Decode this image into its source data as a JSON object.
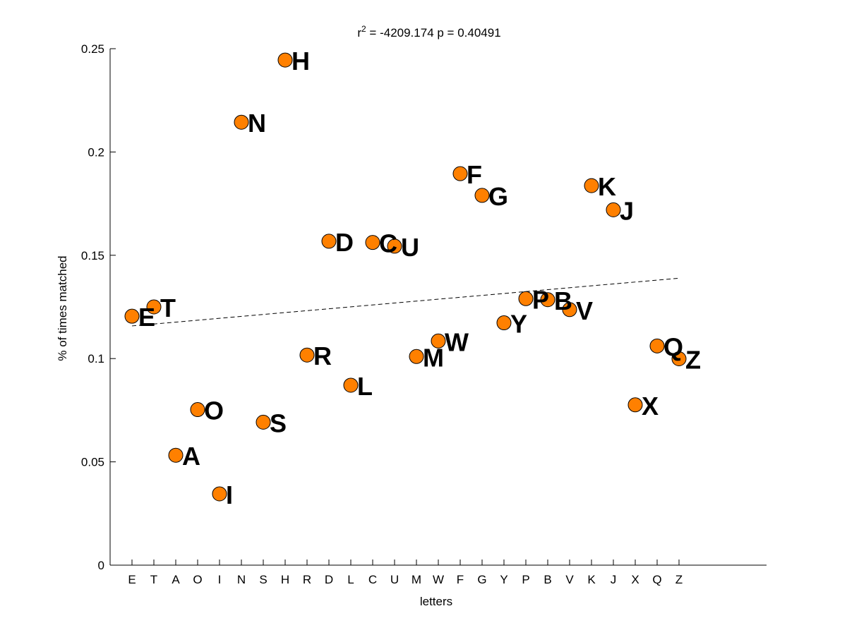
{
  "chart_data": {
    "type": "scatter",
    "title_prefix": "r",
    "title_superscript": "2",
    "title_rest": " = -4209.174 p = 0.40491",
    "xlabel": "letters",
    "ylabel": "% of times matched",
    "categories": [
      "E",
      "T",
      "A",
      "O",
      "I",
      "N",
      "S",
      "H",
      "R",
      "D",
      "L",
      "C",
      "U",
      "M",
      "W",
      "F",
      "G",
      "Y",
      "P",
      "B",
      "V",
      "K",
      "J",
      "X",
      "Q",
      "Z"
    ],
    "values": [
      0.1205,
      0.125,
      0.0532,
      0.0753,
      0.0345,
      0.2144,
      0.0692,
      0.2445,
      0.1017,
      0.1568,
      0.0871,
      0.1562,
      0.1544,
      0.101,
      0.1085,
      0.1895,
      0.179,
      0.1173,
      0.129,
      0.1285,
      0.1237,
      0.1837,
      0.172,
      0.0776,
      0.1061,
      0.0999
    ],
    "point_labels": [
      "E",
      "T",
      "A",
      "O",
      "I",
      "N",
      "S",
      "H",
      "R",
      "D",
      "L",
      "C",
      "U",
      "M",
      "W",
      "F",
      "G",
      "Y",
      "P",
      "B",
      "V",
      "K",
      "J",
      "X",
      "Q",
      "Z"
    ],
    "ylim": [
      0,
      0.25
    ],
    "yticks": [
      0,
      0.05,
      0.1,
      0.15,
      0.2,
      0.25
    ],
    "ytick_labels": [
      "0",
      "0.05",
      "0.1",
      "0.15",
      "0.2",
      "0.25"
    ],
    "trendline": {
      "y_start": 0.1158,
      "y_end": 0.1389
    },
    "marker_color": "#ff8000",
    "marker_edge_color": "#000000",
    "grid": false,
    "legend": "none"
  }
}
